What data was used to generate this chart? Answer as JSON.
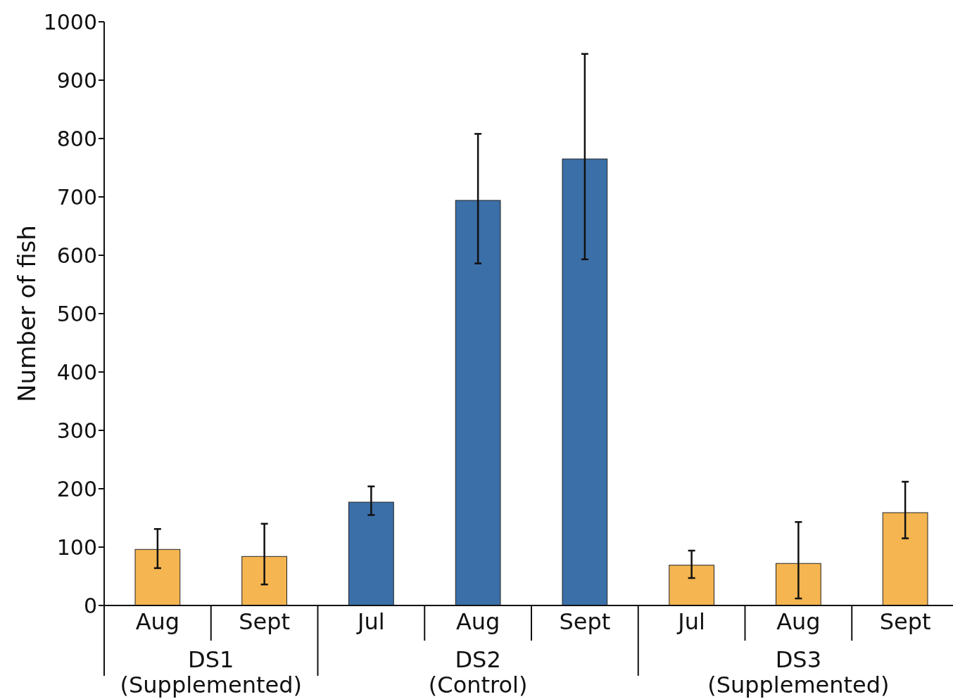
{
  "chart_data": {
    "type": "bar",
    "ylabel": "Number of fish",
    "categories": [
      "Aug",
      "Sept",
      "Jul",
      "Aug",
      "Sept",
      "Jul",
      "Aug",
      "Sept"
    ],
    "values": [
      96,
      84,
      177,
      694,
      765,
      69,
      72,
      159
    ],
    "colors": [
      "#f5b550",
      "#f5b550",
      "#3b6fa8",
      "#3b6fa8",
      "#3b6fa8",
      "#f5b550",
      "#f5b550",
      "#f5b550"
    ],
    "errors": [
      [
        64,
        131
      ],
      [
        36,
        140
      ],
      [
        155,
        204
      ],
      [
        586,
        808
      ],
      [
        593,
        945
      ],
      [
        47,
        94
      ],
      [
        12,
        143
      ],
      [
        115,
        212
      ]
    ],
    "ylim": [
      0,
      1000
    ],
    "yticks": [
      0,
      100,
      200,
      300,
      400,
      500,
      600,
      700,
      800,
      900,
      1000
    ],
    "annotations": [
      "DS1 (Supplemented)",
      "DS2 (Control)",
      "DS3 (Supplemented)"
    ],
    "grid": false
  }
}
